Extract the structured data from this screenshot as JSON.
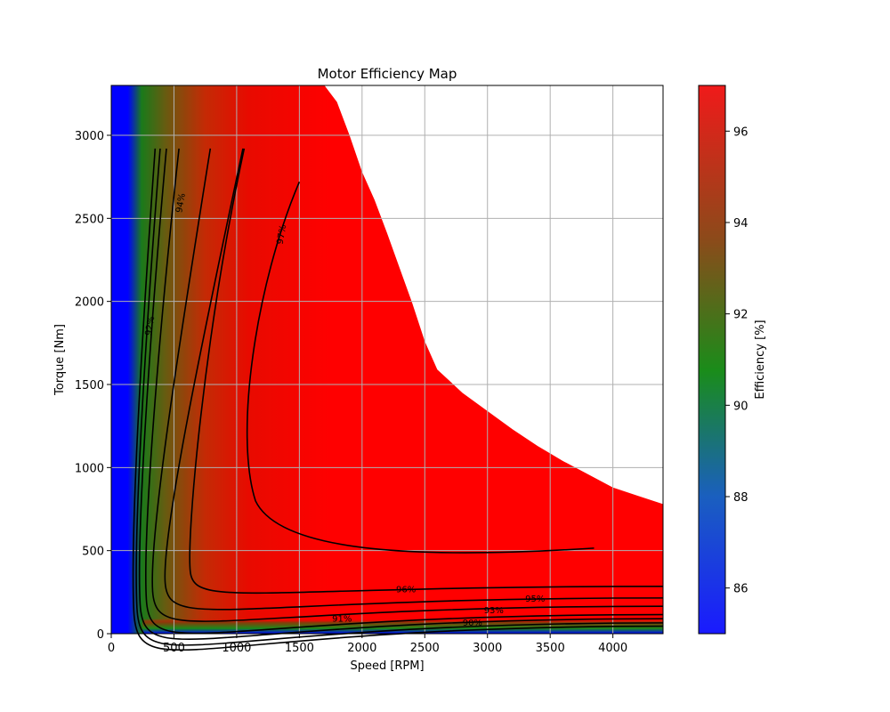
{
  "chart_data": {
    "type": "heatmap",
    "title": "Motor Efficiency Map",
    "xlabel": "Speed [RPM]",
    "ylabel": "Torque [Nm]",
    "xlim": [
      0,
      4400
    ],
    "ylim": [
      0,
      3300
    ],
    "xticks": [
      0,
      500,
      1000,
      1500,
      2000,
      2500,
      3000,
      3500,
      4000
    ],
    "yticks": [
      0,
      500,
      1000,
      1500,
      2000,
      2500,
      3000
    ],
    "grid": true,
    "colorbar": {
      "label": "Efficiency [%]",
      "range": [
        85,
        97
      ],
      "ticks": [
        86,
        88,
        90,
        92,
        94,
        96
      ],
      "colors": [
        "#1a1aff",
        "#1a8c1a",
        "#8c4a1a",
        "#ff1a1a"
      ]
    },
    "operating_boundary": {
      "speed": [
        1700,
        1800,
        1900,
        2000,
        2100,
        2200,
        2300,
        2400,
        2500,
        2600,
        2800,
        3000,
        3200,
        3400,
        3600,
        3800,
        4000,
        4200,
        4400
      ],
      "torque": [
        3300,
        3200,
        3000,
        2780,
        2610,
        2410,
        2200,
        1990,
        1760,
        1590,
        1450,
        1340,
        1230,
        1130,
        1040,
        960,
        880,
        830,
        780
      ]
    },
    "contour_levels": [
      {
        "level": "90%",
        "label_at": [
          2880,
          70
        ]
      },
      {
        "level": "91%",
        "label_at": [
          1840,
          95
        ]
      },
      {
        "level": "92%",
        "label_at": [
          330,
          1850
        ]
      },
      {
        "level": "93%",
        "label_at": [
          3050,
          145
        ]
      },
      {
        "level": "94%",
        "label_at": [
          575,
          2590
        ]
      },
      {
        "level": "95%",
        "label_at": [
          3380,
          215
        ]
      },
      {
        "level": "96%",
        "label_at": [
          2350,
          270
        ]
      },
      {
        "level": "97%",
        "label_at": [
          1380,
          2400
        ]
      }
    ]
  }
}
